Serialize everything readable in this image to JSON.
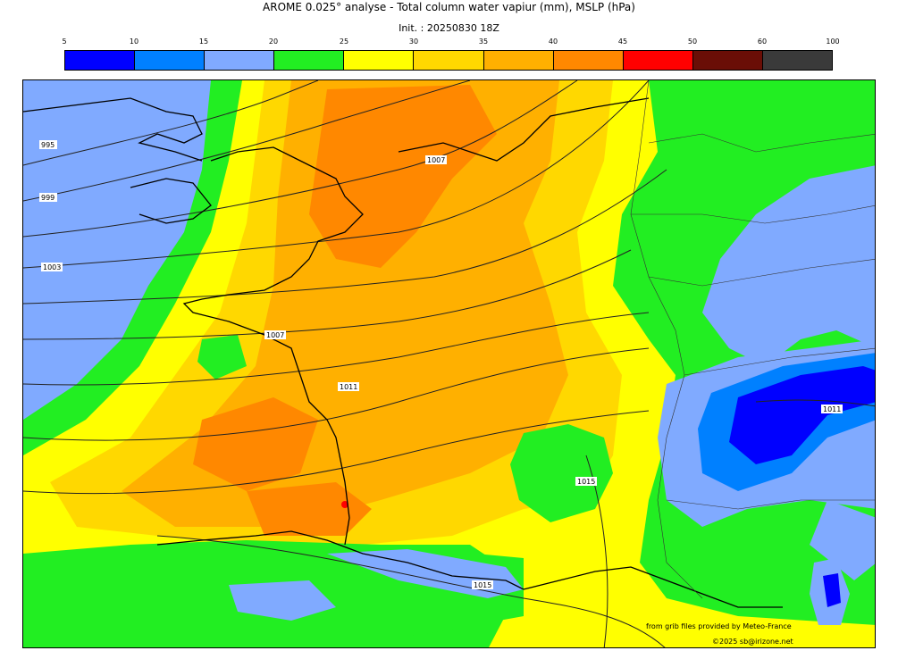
{
  "title": "AROME 0.025° analyse - Total column water vapiur (mm), MSLP (hPa)",
  "subtitle": "Init. : 20250830 18Z",
  "colorbar": {
    "ticks": [
      "5",
      "10",
      "15",
      "20",
      "25",
      "30",
      "35",
      "40",
      "45",
      "50",
      "60",
      "100"
    ],
    "colors": [
      "#0000ff",
      "#0080ff",
      "#80aaff",
      "#22ee22",
      "#ffff00",
      "#ffd800",
      "#ffb000",
      "#ff8800",
      "#ff0000",
      "#6a0e06",
      "#3a3a3a"
    ]
  },
  "isobar_labels": [
    "995",
    "999",
    "1003",
    "1007",
    "1011",
    "1007",
    "1015",
    "1011",
    "1015"
  ],
  "credits": {
    "source": "from grib files provided by Meteo-France",
    "copyright": "©2025 sb@irizone.net"
  }
}
